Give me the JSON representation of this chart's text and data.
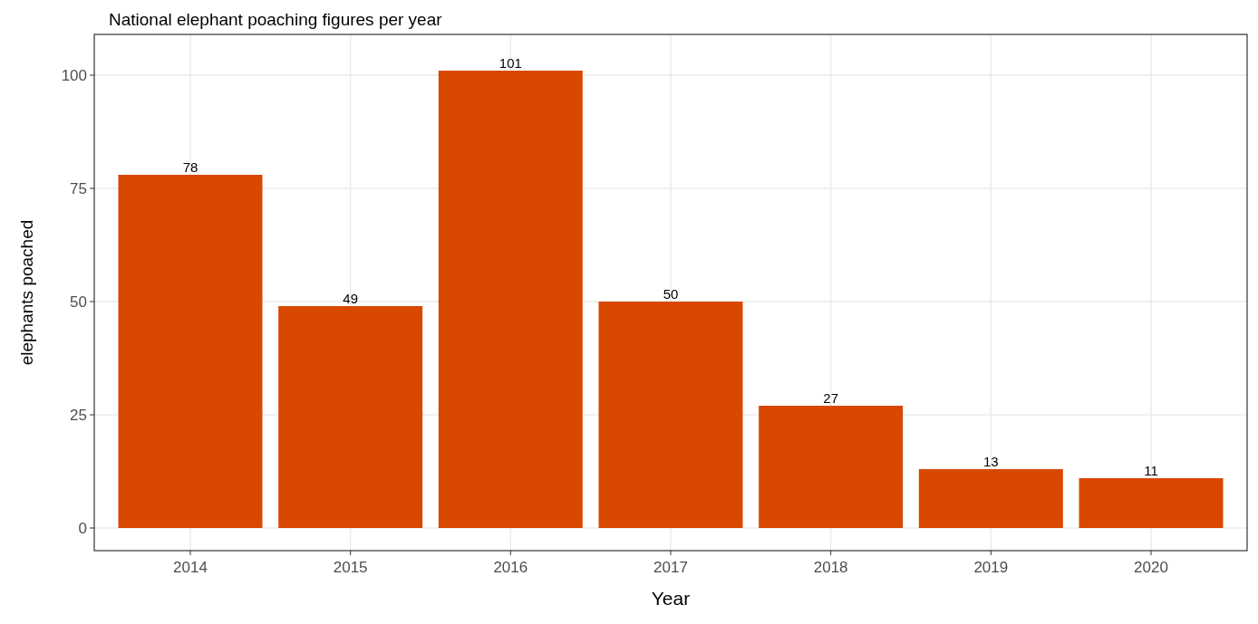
{
  "chart_data": {
    "type": "bar",
    "title": "National elephant poaching figures per year",
    "xlabel": "Year",
    "ylabel": "elephants poached",
    "categories": [
      "2014",
      "2015",
      "2016",
      "2017",
      "2018",
      "2019",
      "2020"
    ],
    "values": [
      78,
      49,
      101,
      50,
      27,
      13,
      11
    ],
    "color": "#d94801",
    "ylim": [
      -5,
      109
    ],
    "yticks": [
      0,
      25,
      50,
      75,
      100
    ],
    "grid": true,
    "data_labels": true
  }
}
